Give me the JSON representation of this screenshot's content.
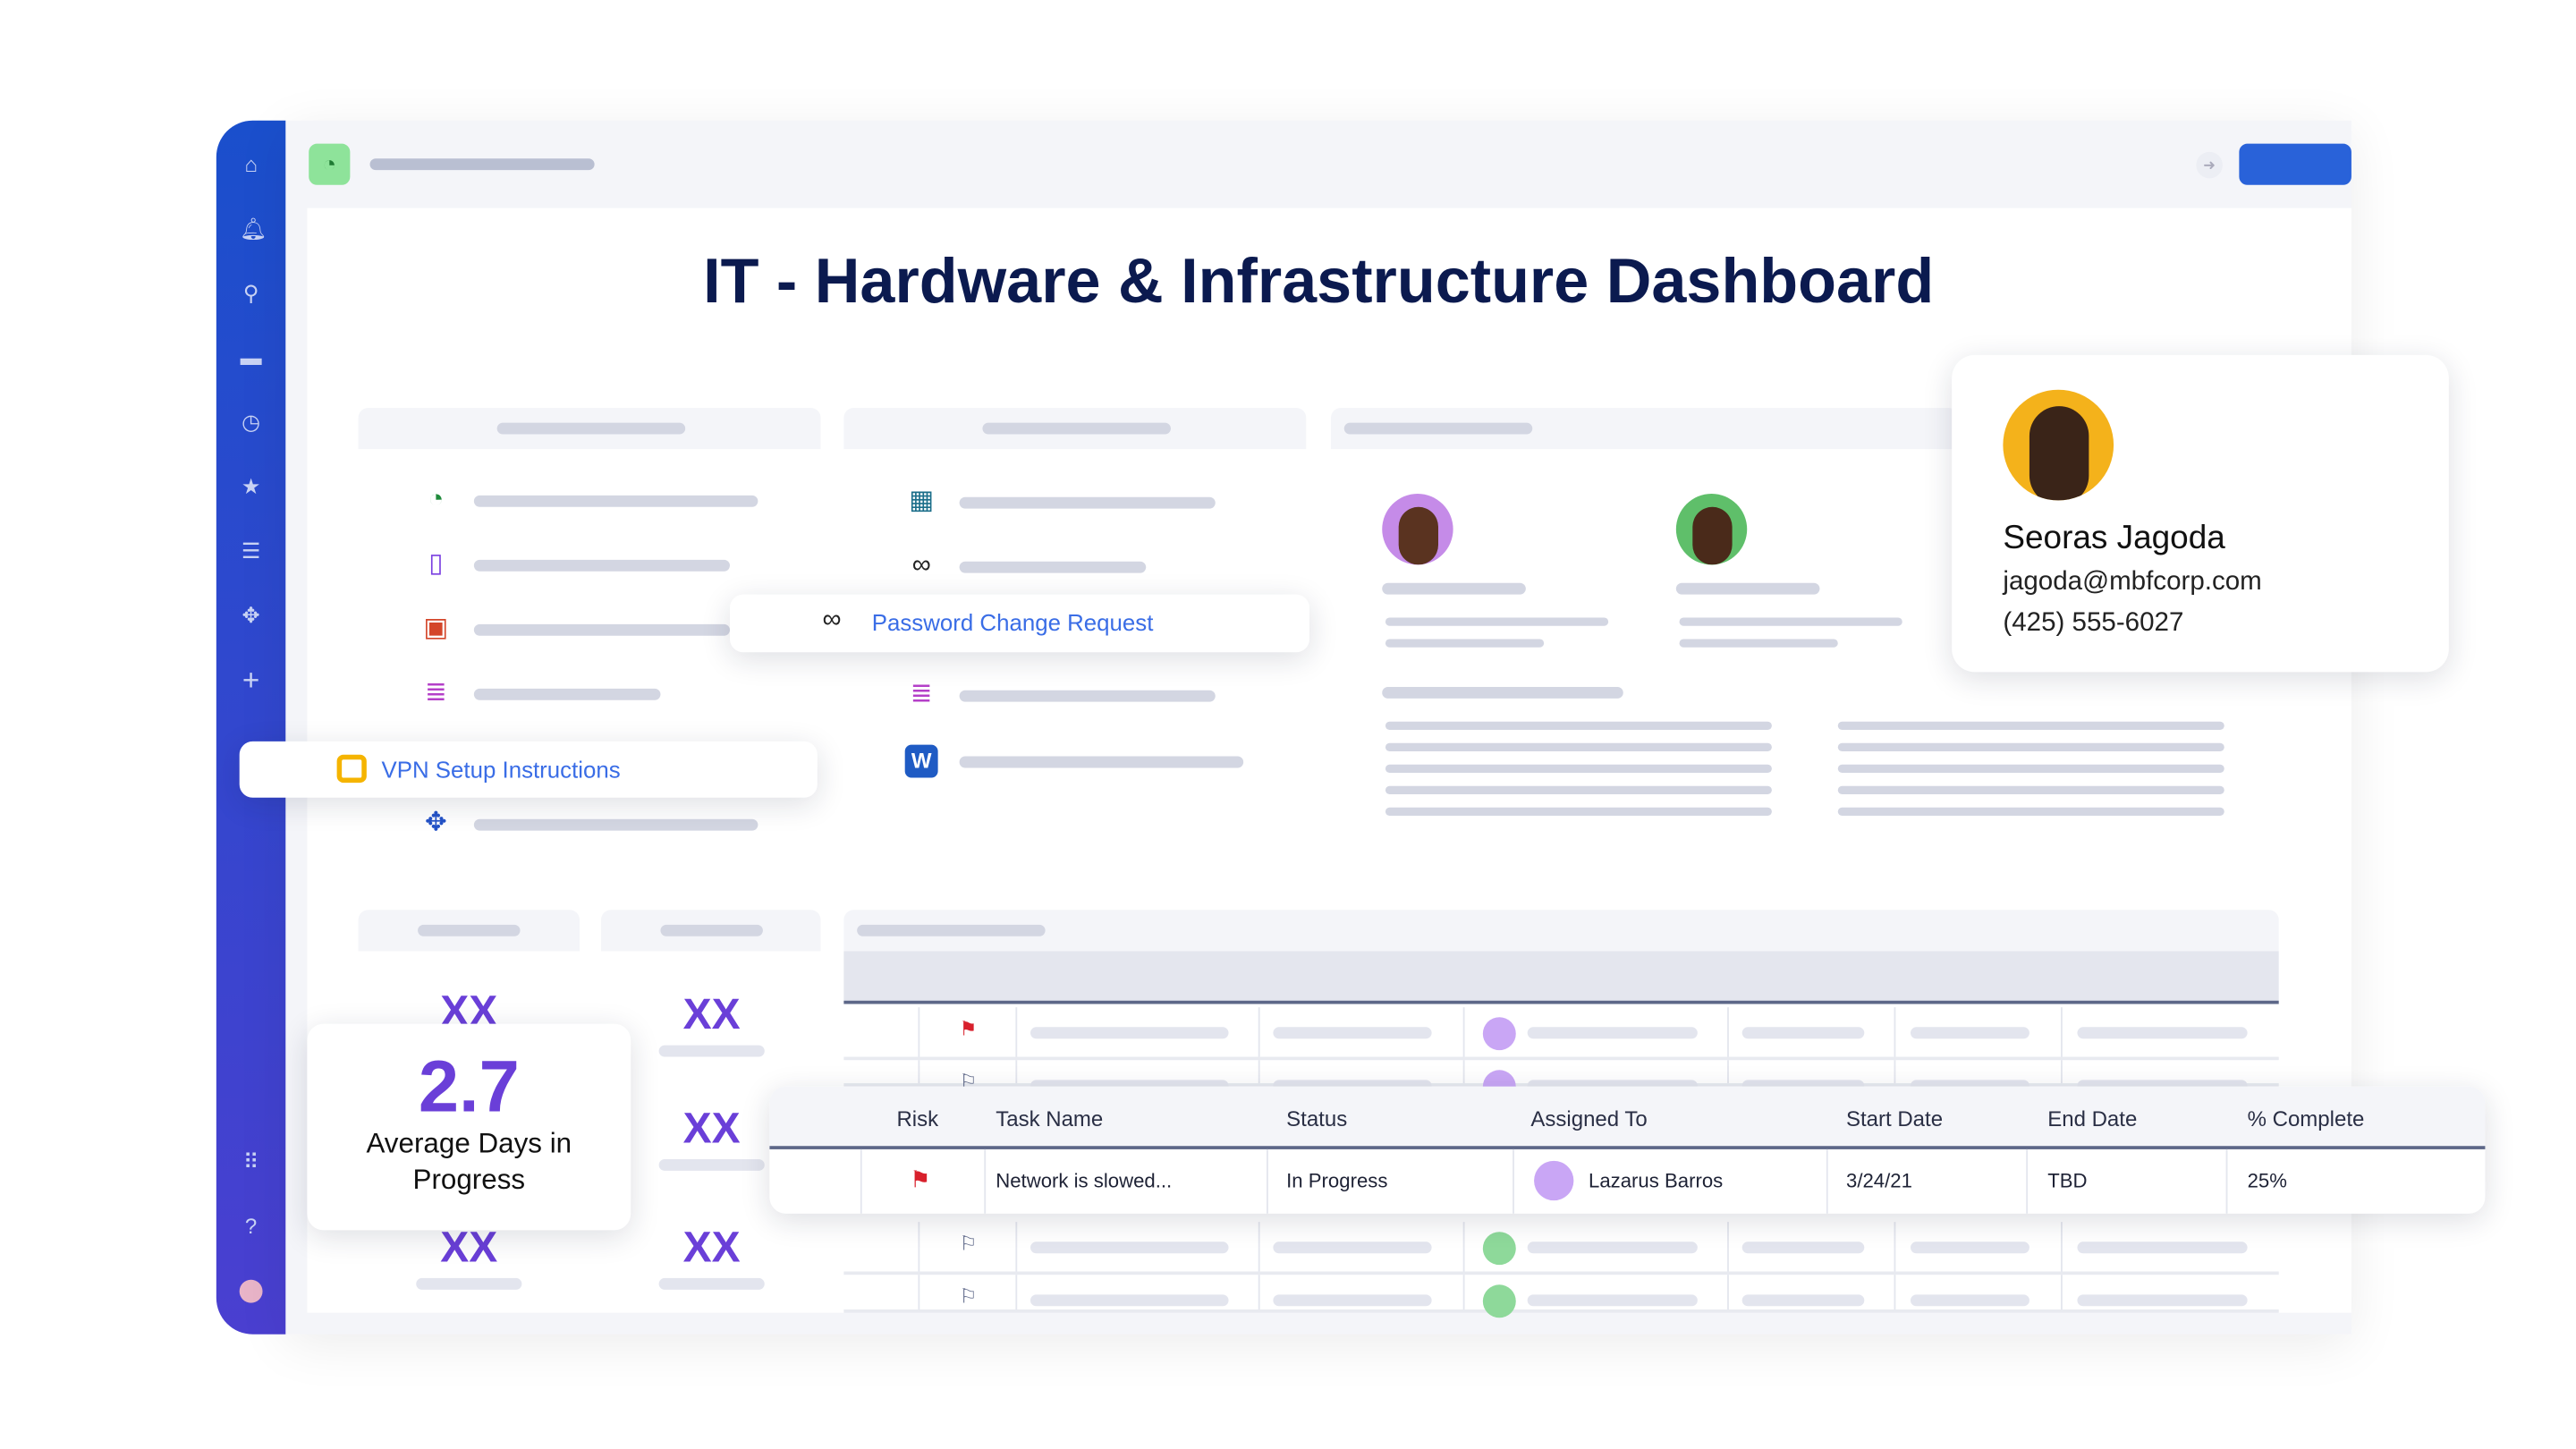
{
  "title": "IT - Hardware & Infrastructure Dashboard",
  "sidebar": {
    "icons": [
      "home-icon",
      "bell-icon",
      "search-icon",
      "folder-icon",
      "clock-icon",
      "star-icon",
      "contacts-icon",
      "apps-icon",
      "plus-icon",
      "grid-icon",
      "help-icon",
      "user-avatar"
    ]
  },
  "links": {
    "password_change": "Password Change Request",
    "vpn_setup": "VPN Setup Instructions"
  },
  "contact": {
    "name": "Seoras Jagoda",
    "email": "jagoda@mbfcorp.com",
    "phone": "(425) 555-6027"
  },
  "metrics": {
    "placeholder": "XX",
    "avg_value": "2.7",
    "avg_label": "Average Days in Progress"
  },
  "table": {
    "columns": [
      "Risk",
      "Task Name",
      "Status",
      "Assigned To",
      "Start Date",
      "End Date",
      "% Complete"
    ],
    "row": {
      "risk": "flag-red",
      "task": "Network is slowed...",
      "status": "In Progress",
      "assigned": "Lazarus Barros",
      "start": "3/24/21",
      "end": "TBD",
      "complete": "25%"
    }
  },
  "colors": {
    "accent": "#2962d9",
    "metric": "#6a3fd8",
    "title": "#0b1a4f",
    "flag": "#d8202c"
  }
}
